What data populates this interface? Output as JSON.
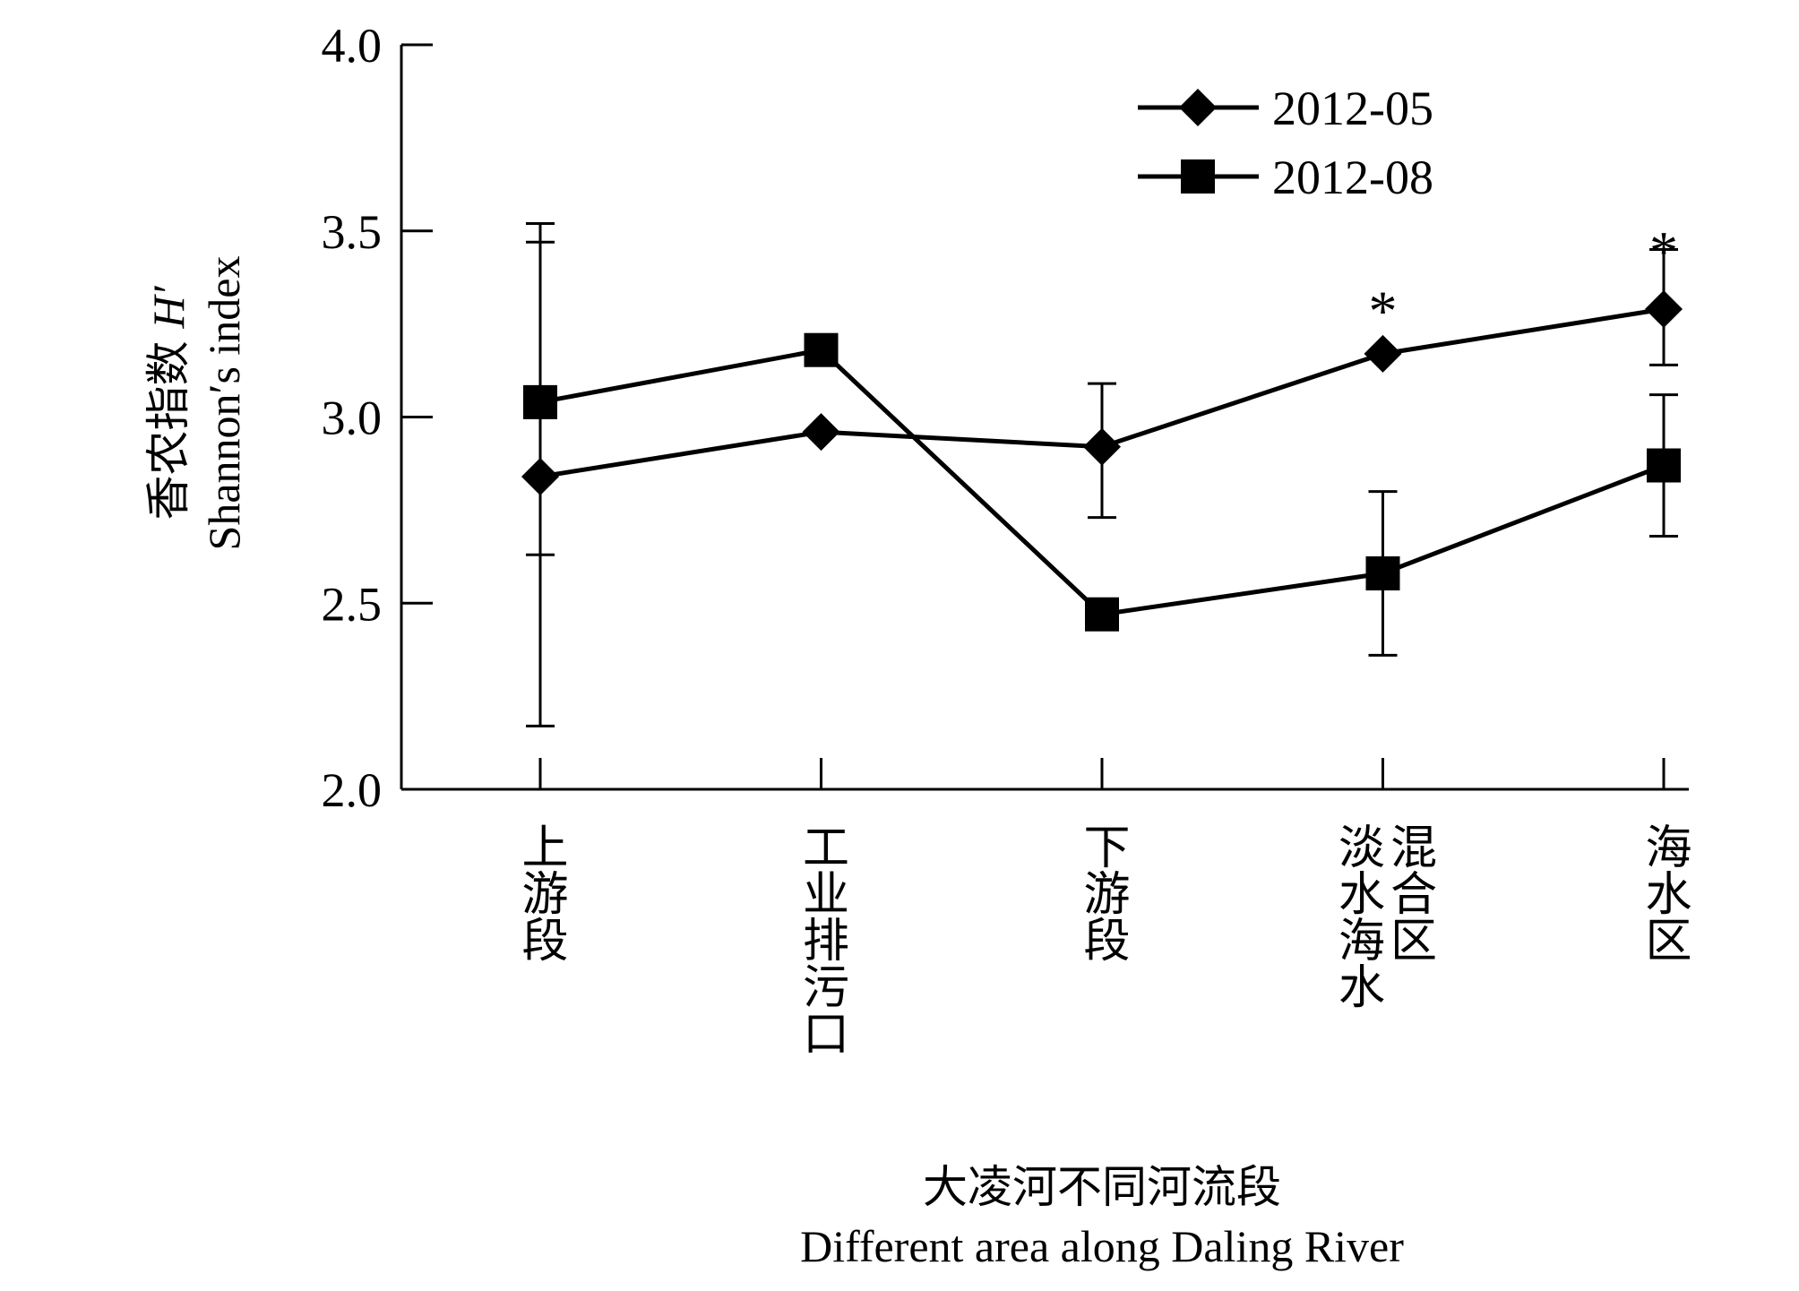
{
  "chart_data": {
    "type": "line",
    "y_axis": {
      "title_cn": "香农指数",
      "title_symbol": "H′",
      "title_en": "Shannon′s index",
      "ylim": [
        2.0,
        4.0
      ],
      "ticks": [
        2.0,
        2.5,
        3.0,
        3.5,
        4.0
      ],
      "tick_labels": [
        "2.0",
        "2.5",
        "3.0",
        "3.5",
        "4.0"
      ]
    },
    "x_axis": {
      "title_cn": "大凌河不同河流段",
      "title_en": "Different area along Daling River",
      "categories": [
        "上游段",
        "工业排污口",
        "下游段",
        "淡水海水混合区",
        "海水区"
      ],
      "category_lines": [
        [
          "上游段"
        ],
        [
          "工业排污口"
        ],
        [
          "下游段"
        ],
        [
          "淡水海水",
          "混合区"
        ],
        [
          "海水区"
        ]
      ]
    },
    "legend": {
      "position": "top-right"
    },
    "series": [
      {
        "name": "2012-05",
        "marker": "diamond",
        "values": [
          2.84,
          2.96,
          2.92,
          3.17,
          3.29
        ],
        "err_low": [
          2.63,
          null,
          2.73,
          null,
          3.14
        ],
        "err_high": [
          3.52,
          null,
          3.09,
          null,
          3.45
        ]
      },
      {
        "name": "2012-08",
        "marker": "square",
        "values": [
          3.04,
          3.18,
          2.47,
          2.58,
          2.87
        ],
        "err_low": [
          2.17,
          null,
          null,
          2.36,
          2.68
        ],
        "err_high": [
          3.47,
          null,
          null,
          2.8,
          3.06
        ]
      }
    ],
    "annotations": [
      {
        "text": "*",
        "category_index": 3,
        "y": 3.33
      },
      {
        "text": "*",
        "category_index": 4,
        "y": 3.49
      }
    ],
    "grid": false,
    "color": "#000000"
  }
}
